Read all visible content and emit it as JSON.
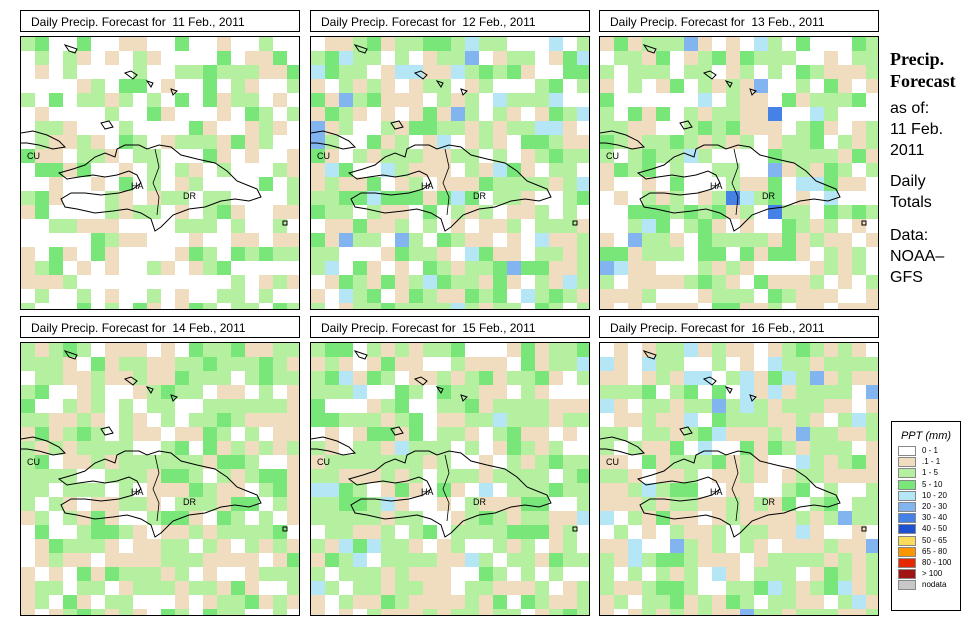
{
  "panels": [
    {
      "title": "Daily Precip. Forecast for  11 Feb., 2011",
      "labels": {
        "cu": "CU",
        "ha": "HA",
        "dr": "DR"
      }
    },
    {
      "title": "Daily Precip. Forecast for  12 Feb., 2011",
      "labels": {
        "cu": "CU",
        "ha": "HA",
        "dr": "DR"
      }
    },
    {
      "title": "Daily Precip. Forecast for  13 Feb., 2011",
      "labels": {
        "cu": "CU",
        "ha": "HA",
        "dr": "DR"
      }
    },
    {
      "title": "Daily Precip. Forecast for  14 Feb., 2011",
      "labels": {
        "cu": "CU",
        "ha": "HA",
        "dr": "DR"
      }
    },
    {
      "title": "Daily Precip. Forecast for  15 Feb., 2011",
      "labels": {
        "cu": "CU",
        "ha": "HA",
        "dr": "DR"
      }
    },
    {
      "title": "Daily Precip. Forecast for  16 Feb., 2011",
      "labels": {
        "cu": "CU",
        "ha": "HA",
        "dr": "DR"
      }
    }
  ],
  "side": {
    "heading1": "Precip.",
    "heading2": "Forecast",
    "as_of": "as of:",
    "date1": "11 Feb.",
    "date2": "2011",
    "daily": "Daily",
    "totals": "Totals",
    "data": "Data:",
    "source1": "NOAA–",
    "source2": "GFS"
  },
  "legend": {
    "title": "PPT (mm)",
    "items": [
      {
        "label": "0 - 1",
        "color": "#ffffff"
      },
      {
        "label": ".1 - 1",
        "color": "#f0dcbe"
      },
      {
        "label": "1 - 5",
        "color": "#b4f0a0"
      },
      {
        "label": "5 - 10",
        "color": "#78e678"
      },
      {
        "label": "10 - 20",
        "color": "#b4e6f5"
      },
      {
        "label": "20 - 30",
        "color": "#82b4f0"
      },
      {
        "label": "30 - 40",
        "color": "#4682e6"
      },
      {
        "label": "40 - 50",
        "color": "#1e50d2"
      },
      {
        "label": "50 - 65",
        "color": "#fadc5a"
      },
      {
        "label": "65 - 80",
        "color": "#fa9600"
      },
      {
        "label": "80 - 100",
        "color": "#e62800"
      },
      {
        "label": "> 100",
        "color": "#a01414"
      },
      {
        "label": "nodata",
        "color": "#c8c8c8"
      }
    ]
  }
}
